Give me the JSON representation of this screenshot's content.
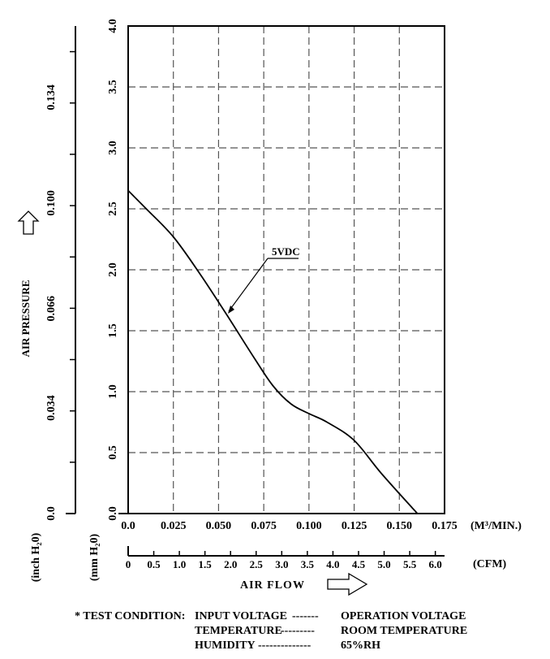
{
  "chart_data": {
    "type": "line",
    "ylabel": "AIR PRESSURE",
    "y_unit_left": "(inch H₂0)",
    "y_unit_right": "(mm H₂0)",
    "y_ticks_mm": [
      "0.0",
      "0.5",
      "1.0",
      "1.5",
      "2.0",
      "2.5",
      "3.0",
      "3.5",
      "4.0"
    ],
    "y_ticks_inch": [
      "0.0",
      "0.034",
      "0.066",
      "0.100",
      "0.134"
    ],
    "ylim_mm": [
      0,
      4.0
    ],
    "ylim_inch": [
      0,
      0.157
    ],
    "xlabel": "AIR FLOW",
    "x_unit_m3": "(M³/MIN.)",
    "x_unit_cfm": "(CFM)",
    "x_ticks_m3": [
      "0.0",
      "0.025",
      "0.050",
      "0.075",
      "0.100",
      "0.125",
      "0.150",
      "0.175"
    ],
    "x_ticks_cfm": [
      "0",
      "0.5",
      "1.0",
      "1.5",
      "2.0",
      "2.5",
      "3.0",
      "3.5",
      "4.0",
      "4.5",
      "5.0",
      "5.5",
      "6.0"
    ],
    "xlim_m3": [
      0,
      0.175
    ],
    "xlim_cfm": [
      0,
      6.18
    ],
    "grid": true,
    "series": [
      {
        "name": "5VDC",
        "x": [
          0.0,
          0.01,
          0.025,
          0.04,
          0.055,
          0.07,
          0.08,
          0.09,
          0.1,
          0.11,
          0.125,
          0.14,
          0.16
        ],
        "y": [
          2.65,
          2.5,
          2.27,
          1.96,
          1.62,
          1.27,
          1.05,
          0.9,
          0.82,
          0.75,
          0.6,
          0.33,
          0.0
        ]
      }
    ]
  },
  "test_condition": {
    "prefix": "* TEST CONDITION:",
    "rows": [
      {
        "label": "INPUT VOLTAGE",
        "dashes": "-------",
        "value": "OPERATION VOLTAGE"
      },
      {
        "label": "TEMPERATURE",
        "dashes": "---------",
        "value": "ROOM TEMPERATURE"
      },
      {
        "label": "HUMIDITY",
        "dashes": "--------------",
        "value": "65%RH"
      }
    ]
  }
}
